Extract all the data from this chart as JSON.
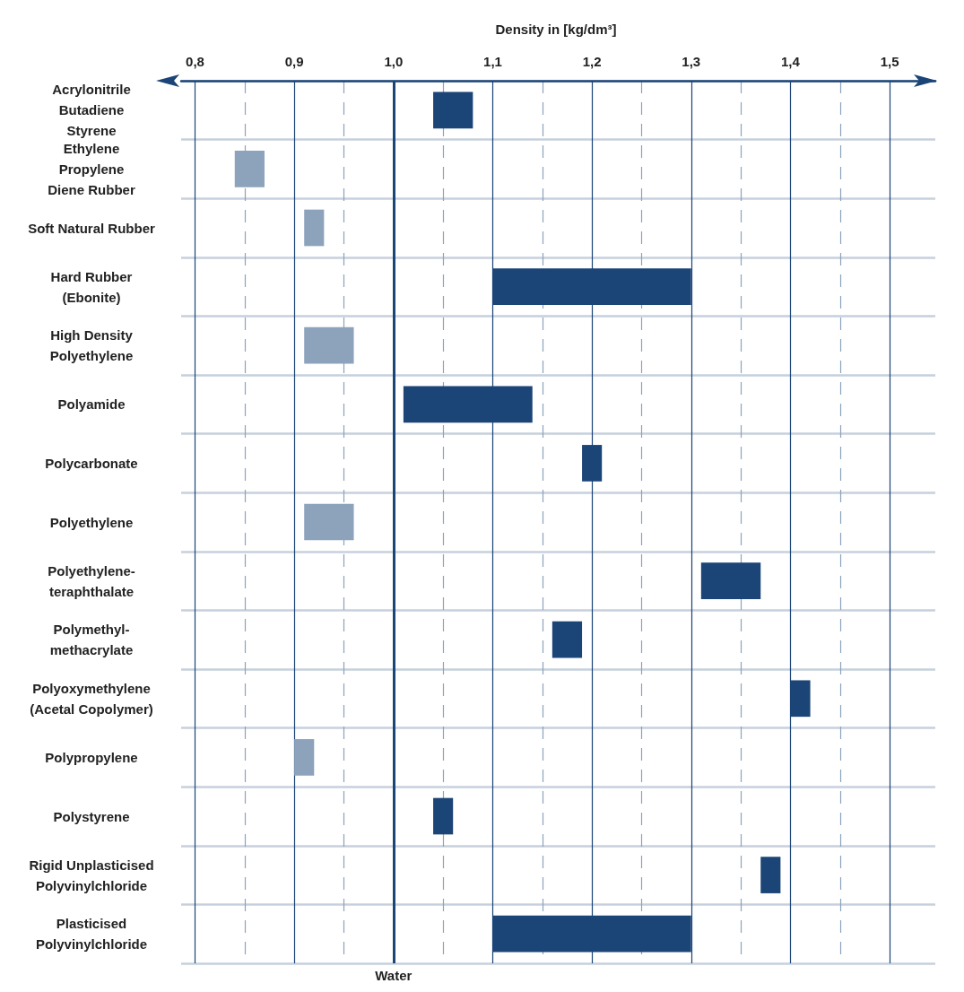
{
  "chart_data": {
    "type": "bar",
    "orientation": "horizontal",
    "xlabel": "Density in [kg/dm³]",
    "categories": [
      "Acrylonitrile\nButadiene\nStyrene",
      "Ethylene\nPropylene\nDiene Rubber",
      "Soft Natural Rubber",
      "Hard Rubber\n(Ebonite)",
      "High Density\nPolyethylene",
      "Polyamide",
      "Polycarbonate",
      "Polyethylene",
      "Polyethylene-\nteraphthalate",
      "Polymethyl-\nmethacrylate",
      "Polyoxymethylene\n(Acetal Copolymer)",
      "Polypropylene",
      "Polystyrene",
      "Rigid Unplasticised\nPolyvinylchloride",
      "Plasticised\nPolyvinylchloride"
    ],
    "base": [
      1.04,
      0.84,
      0.91,
      1.1,
      0.91,
      1.01,
      1.19,
      0.91,
      1.31,
      1.16,
      1.4,
      0.9,
      1.04,
      1.37,
      1.1
    ],
    "values": [
      0.04,
      0.03,
      0.02,
      0.2,
      0.05,
      0.13,
      0.02,
      0.05,
      0.06,
      0.03,
      0.02,
      0.02,
      0.02,
      0.02,
      0.2
    ],
    "colors": [
      "#1b4477",
      "#8ca3bb",
      "#8ca3bb",
      "#1b4477",
      "#8ca3bb",
      "#1b4477",
      "#1b4477",
      "#8ca3bb",
      "#1b4477",
      "#1b4477",
      "#1b4477",
      "#8ca3bb",
      "#1b4477",
      "#1b4477",
      "#1b4477"
    ],
    "xlim": [
      0.786,
      1.546
    ],
    "xticks": [
      {
        "value": 0.8,
        "label": "0,8"
      },
      {
        "value": 0.85,
        "label": null
      },
      {
        "value": 0.9,
        "label": "0,9"
      },
      {
        "value": 0.95,
        "label": null
      },
      {
        "value": 1.0,
        "label": "1,0"
      },
      {
        "value": 1.05,
        "label": null
      },
      {
        "value": 1.1,
        "label": "1,1"
      },
      {
        "value": 1.15,
        "label": null
      },
      {
        "value": 1.2,
        "label": "1,2"
      },
      {
        "value": 1.25,
        "label": null
      },
      {
        "value": 1.3,
        "label": "1,3"
      },
      {
        "value": 1.35,
        "label": null
      },
      {
        "value": 1.4,
        "label": "1,4"
      },
      {
        "value": 1.45,
        "label": null
      },
      {
        "value": 1.5,
        "label": "1,5"
      }
    ],
    "grid": true,
    "ref_lines": [
      {
        "axis": "x",
        "value": 1.0,
        "label": "Water",
        "color": "#1b4477"
      }
    ]
  }
}
